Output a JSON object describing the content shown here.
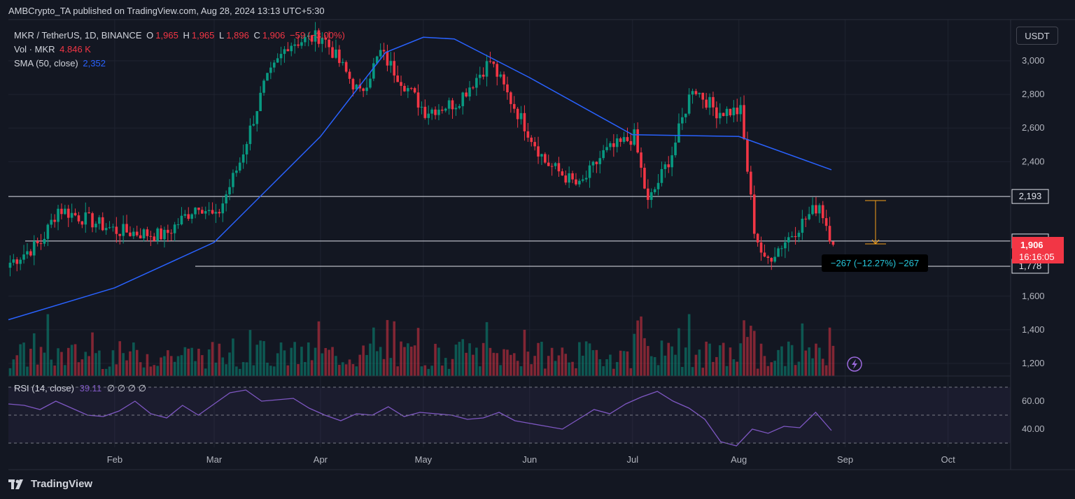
{
  "header": {
    "published_line": "AMBCrypto_TA published on TradingView.com, Aug 28, 2024 13:13 UTC+5:30"
  },
  "legend": {
    "symbol": "MKR / TetherUS, 1D, BINANCE",
    "o_label": "O",
    "o_value": "1,965",
    "h_label": "H",
    "h_value": "1,965",
    "l_label": "L",
    "l_value": "1,896",
    "c_label": "C",
    "c_value": "1,906",
    "change": "−59 (−3.00%)",
    "vol_label": "Vol · MKR",
    "vol_value": "4.846 K",
    "sma_label": "SMA (50, close)",
    "sma_value": "2,352"
  },
  "currency_button": "USDT",
  "rsi_legend": {
    "label": "RSI (14, close)",
    "value": "39.11",
    "placeholders": "∅ ∅ ∅ ∅"
  },
  "measure_label": "−267 (−12.27%) −267",
  "price_badge": {
    "price": "1,906",
    "countdown": "16:16:05"
  },
  "brand": "TradingView",
  "colors": {
    "up": "#089981",
    "down": "#f23645",
    "sma": "#2962ff",
    "rsi": "#7e57c2",
    "bg": "#131722"
  },
  "icons": {
    "alert": "lightning-bolt-icon",
    "logo": "tradingview-logo-icon"
  },
  "chart_data": {
    "type": "candlestick",
    "x_ticks": [
      "Feb",
      "Mar",
      "Apr",
      "May",
      "Jun",
      "Jul",
      "Aug",
      "Sep",
      "Oct"
    ],
    "y_ticks": [
      "1,200",
      "1,400",
      "1,600",
      "2,400",
      "2,600",
      "2,800",
      "3,000"
    ],
    "ylim": [
      1160,
      3180
    ],
    "horizontal_levels": [
      {
        "label": "2,193",
        "value": 2193
      },
      {
        "label": "1,928",
        "value": 1928
      },
      {
        "label": "1,778",
        "value": 1778
      }
    ],
    "price_path_approx": [
      {
        "date": "Jan",
        "close": 1800
      },
      {
        "date": "Jan 10",
        "close": 1920
      },
      {
        "date": "Jan 15",
        "close": 2120
      },
      {
        "date": "Feb",
        "close": 1990
      },
      {
        "date": "Feb 15",
        "close": 1960
      },
      {
        "date": "Feb 25",
        "close": 2150
      },
      {
        "date": "Mar",
        "close": 2060
      },
      {
        "date": "Mar 8",
        "close": 2400
      },
      {
        "date": "Mar 15",
        "close": 2850
      },
      {
        "date": "Mar 22",
        "close": 3100
      },
      {
        "date": "Apr",
        "close": 3150
      },
      {
        "date": "Apr 12",
        "close": 2800
      },
      {
        "date": "Apr 18",
        "close": 3050
      },
      {
        "date": "May",
        "close": 2700
      },
      {
        "date": "May 10",
        "close": 2750
      },
      {
        "date": "May 20",
        "close": 3000
      },
      {
        "date": "May 25",
        "close": 2800
      },
      {
        "date": "Jun 5",
        "close": 2400
      },
      {
        "date": "Jun 15",
        "close": 2250
      },
      {
        "date": "Jun 22",
        "close": 2450
      },
      {
        "date": "Jul",
        "close": 2550
      },
      {
        "date": "Jul 5",
        "close": 2150
      },
      {
        "date": "Jul 12",
        "close": 2450
      },
      {
        "date": "Jul 18",
        "close": 2850
      },
      {
        "date": "Jul 25",
        "close": 2700
      },
      {
        "date": "Aug",
        "close": 2700
      },
      {
        "date": "Aug 5",
        "close": 2000
      },
      {
        "date": "Aug 8",
        "close": 1800
      },
      {
        "date": "Aug 15",
        "close": 1950
      },
      {
        "date": "Aug 24",
        "close": 2150
      },
      {
        "date": "Aug 28",
        "close": 1906
      }
    ],
    "sma_50_approx": [
      {
        "date": "Jan",
        "value": 1460
      },
      {
        "date": "Feb",
        "value": 1650
      },
      {
        "date": "Mar",
        "value": 1920
      },
      {
        "date": "Apr",
        "value": 2550
      },
      {
        "date": "Apr 20",
        "value": 3050
      },
      {
        "date": "May",
        "value": 3140
      },
      {
        "date": "May 10",
        "value": 3130
      },
      {
        "date": "Jun",
        "value": 2900
      },
      {
        "date": "Jul",
        "value": 2560
      },
      {
        "date": "Aug",
        "value": 2550
      },
      {
        "date": "Aug 28",
        "value": 2352
      }
    ],
    "rsi": {
      "ticks": [
        "60.00",
        "40.00"
      ],
      "ylim": [
        20,
        80
      ],
      "bands": [
        30,
        50,
        70
      ],
      "path_approx": [
        58,
        57,
        54,
        60,
        55,
        50,
        49,
        53,
        60,
        51,
        48,
        57,
        50,
        58,
        66,
        68,
        60,
        61,
        62,
        55,
        50,
        46,
        51,
        50,
        56,
        49,
        52,
        51,
        50,
        47,
        48,
        52,
        46,
        44,
        42,
        40,
        47,
        54,
        51,
        58,
        63,
        67,
        60,
        55,
        47,
        31,
        28,
        40,
        37,
        42,
        41,
        52,
        39
      ]
    }
  }
}
